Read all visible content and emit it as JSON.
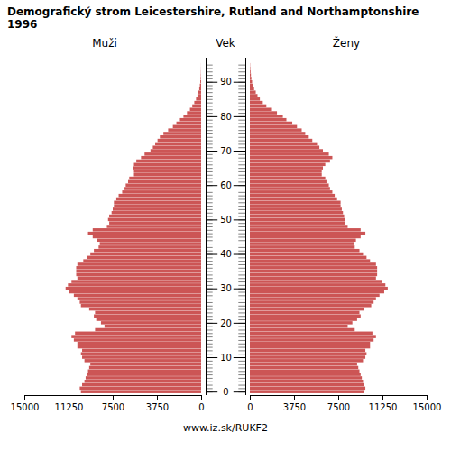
{
  "chart_data": {
    "type": "pyramid",
    "orientation": "horizontal",
    "title": "Demografický strom Leicestershire, Rutland and Northamptonshire 1996",
    "ylabel": "Vek",
    "caption": "www.iz.sk/RUKF2",
    "categories": [
      0,
      1,
      2,
      3,
      4,
      5,
      6,
      7,
      8,
      9,
      10,
      11,
      12,
      13,
      14,
      15,
      16,
      17,
      18,
      19,
      20,
      21,
      22,
      23,
      24,
      25,
      26,
      27,
      28,
      29,
      30,
      31,
      32,
      33,
      34,
      35,
      36,
      37,
      38,
      39,
      40,
      41,
      42,
      43,
      44,
      45,
      46,
      47,
      48,
      49,
      50,
      51,
      52,
      53,
      54,
      55,
      56,
      57,
      58,
      59,
      60,
      61,
      62,
      63,
      64,
      65,
      66,
      67,
      68,
      69,
      70,
      71,
      72,
      73,
      74,
      75,
      76,
      77,
      78,
      79,
      80,
      81,
      82,
      83,
      84,
      85,
      86,
      87,
      88,
      89,
      90,
      91,
      92,
      93,
      94,
      95
    ],
    "series": [
      {
        "name": "Muži",
        "color": "#cc5555",
        "values": [
          10200,
          10300,
          10100,
          9900,
          9800,
          9700,
          9600,
          9500,
          9400,
          9900,
          10100,
          10200,
          10100,
          10500,
          10500,
          10800,
          11000,
          10700,
          9000,
          8200,
          8500,
          8900,
          9100,
          9000,
          9500,
          10200,
          10300,
          10500,
          10800,
          11200,
          11500,
          11300,
          11000,
          10500,
          10600,
          10600,
          10600,
          10500,
          10000,
          9700,
          9400,
          9100,
          8700,
          8600,
          8800,
          9200,
          9600,
          9200,
          8000,
          7800,
          7900,
          7800,
          7600,
          7500,
          7400,
          7400,
          7200,
          7000,
          6700,
          6500,
          6400,
          6200,
          6100,
          5700,
          5700,
          5800,
          5700,
          5500,
          5100,
          4800,
          4300,
          4100,
          3900,
          3700,
          3500,
          3200,
          2800,
          2400,
          2100,
          1800,
          1500,
          1200,
          950,
          750,
          580,
          430,
          310,
          230,
          160,
          110,
          70,
          45,
          28,
          18,
          10,
          5
        ]
      },
      {
        "name": "Ženy",
        "color": "#cc5555",
        "values": [
          9700,
          9800,
          9700,
          9600,
          9500,
          9400,
          9300,
          9200,
          9100,
          9600,
          9800,
          9900,
          9800,
          10200,
          10200,
          10500,
          10700,
          10400,
          8900,
          8300,
          8700,
          9100,
          9400,
          9300,
          9700,
          10300,
          10500,
          10700,
          11000,
          11400,
          11700,
          11500,
          11200,
          10700,
          10800,
          10800,
          10800,
          10700,
          10200,
          9900,
          9600,
          9300,
          8900,
          8800,
          9000,
          9400,
          9800,
          9400,
          8300,
          8100,
          8100,
          8000,
          7900,
          7800,
          7700,
          7700,
          7400,
          7200,
          7000,
          6800,
          6700,
          6500,
          6400,
          6100,
          6100,
          6200,
          6400,
          6800,
          7000,
          6700,
          6200,
          5900,
          5700,
          5300,
          5000,
          4700,
          4400,
          4000,
          3600,
          3100,
          2800,
          2300,
          1800,
          1400,
          1100,
          850,
          650,
          500,
          360,
          260,
          190,
          130,
          90,
          60,
          35,
          18
        ]
      }
    ],
    "xlim": [
      0,
      15000
    ],
    "xticks": [
      0,
      3750,
      7500,
      11250,
      15000
    ],
    "ylim": [
      -1,
      97
    ],
    "yticks": [
      0,
      10,
      20,
      30,
      40,
      50,
      60,
      70,
      80,
      90
    ],
    "grid": false
  }
}
